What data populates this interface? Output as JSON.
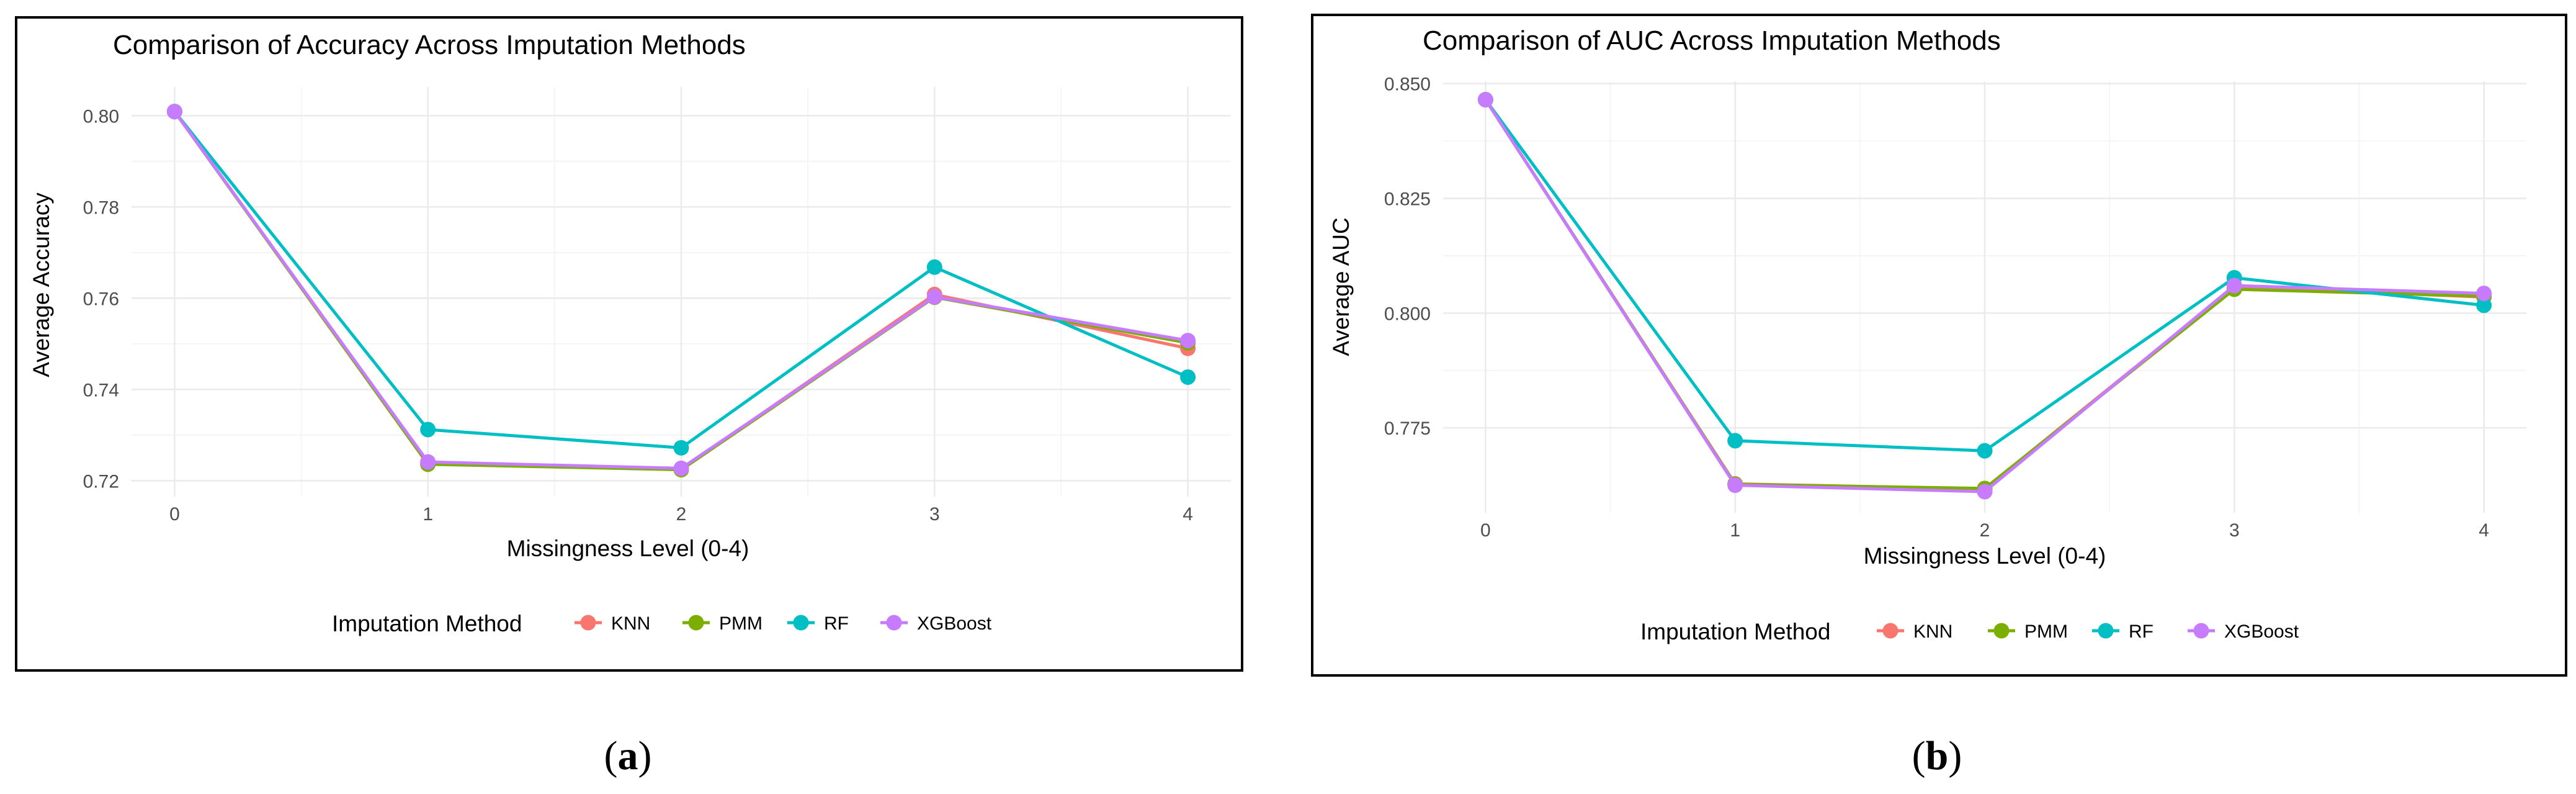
{
  "chart_data": [
    {
      "type": "line",
      "title": "Comparison of Accuracy Across Imputation Methods",
      "xlabel": "Missingness Level (0-4)",
      "ylabel": "Average Accuracy",
      "x": [
        0,
        1,
        2,
        3,
        4
      ],
      "xticks": [
        "0",
        "1",
        "2",
        "3",
        "4"
      ],
      "yticks": [
        "0.72",
        "0.74",
        "0.76",
        "0.78",
        "0.80"
      ],
      "ytick_values": [
        0.72,
        0.74,
        0.76,
        0.78,
        0.8
      ],
      "ylim": [
        0.7165,
        0.8063
      ],
      "xlim": [
        -0.17,
        4.17
      ],
      "grid": true,
      "legend_title": "Imputation Method",
      "legend_position": "bottom",
      "series": [
        {
          "name": "KNN",
          "color": "#F8766D",
          "values": [
            0.8009,
            0.7238,
            0.7225,
            0.7608,
            0.749
          ]
        },
        {
          "name": "PMM",
          "color": "#7CAE00",
          "values": [
            0.8009,
            0.7236,
            0.7224,
            0.7602,
            0.7502
          ]
        },
        {
          "name": "RF",
          "color": "#00BFC4",
          "values": [
            0.8009,
            0.7312,
            0.7272,
            0.7668,
            0.7427
          ]
        },
        {
          "name": "XGBoost",
          "color": "#C77CFF",
          "values": [
            0.8009,
            0.7241,
            0.7227,
            0.7603,
            0.7507
          ]
        }
      ],
      "caption": "a"
    },
    {
      "type": "line",
      "title": "Comparison of AUC Across Imputation Methods",
      "xlabel": "Missingness Level (0-4)",
      "ylabel": "Average AUC",
      "x": [
        0,
        1,
        2,
        3,
        4
      ],
      "xticks": [
        "0",
        "1",
        "2",
        "3",
        "4"
      ],
      "yticks": [
        "0.775",
        "0.800",
        "0.825",
        "0.850"
      ],
      "ytick_values": [
        0.775,
        0.8,
        0.825,
        0.85
      ],
      "ylim": [
        0.7565,
        0.8505
      ],
      "xlim": [
        -0.17,
        4.17
      ],
      "grid": true,
      "legend_title": "Imputation Method",
      "legend_position": "bottom",
      "series": [
        {
          "name": "KNN",
          "color": "#F8766D",
          "values": [
            0.8465,
            0.7628,
            0.7617,
            0.8057,
            0.8035
          ]
        },
        {
          "name": "PMM",
          "color": "#7CAE00",
          "values": [
            0.8465,
            0.7627,
            0.7618,
            0.8052,
            0.8037
          ]
        },
        {
          "name": "RF",
          "color": "#00BFC4",
          "values": [
            0.8465,
            0.7722,
            0.77,
            0.8077,
            0.8017
          ]
        },
        {
          "name": "XGBoost",
          "color": "#C77CFF",
          "values": [
            0.8465,
            0.7625,
            0.7611,
            0.806,
            0.8043
          ]
        }
      ],
      "caption": "b"
    }
  ]
}
